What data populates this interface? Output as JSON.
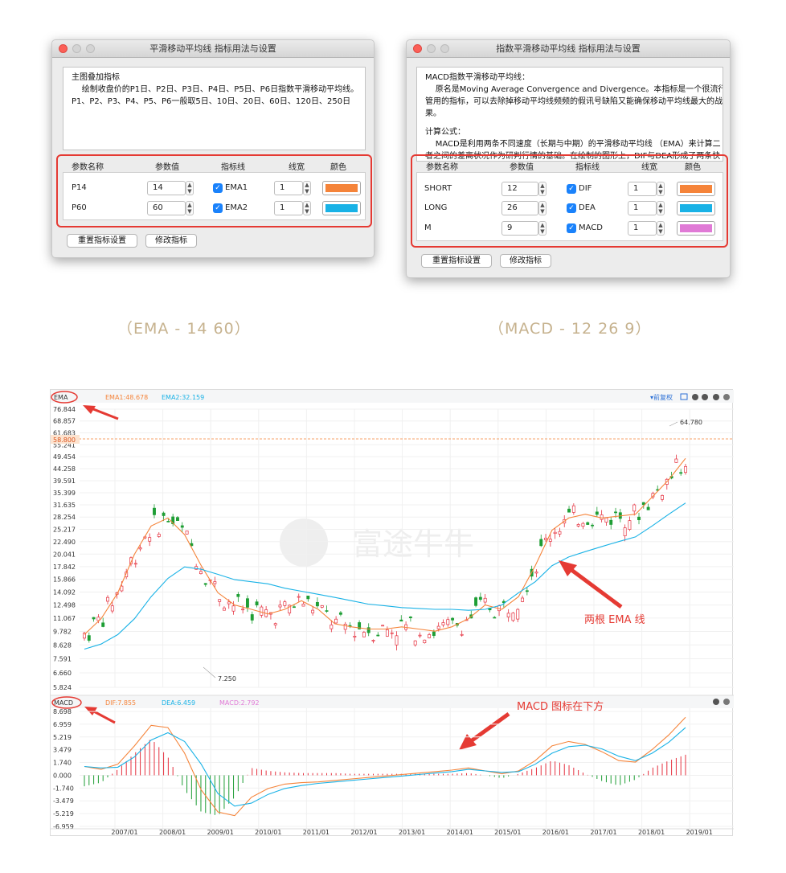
{
  "dialog_ema": {
    "title": "平滑移动平均线 指标用法与设置",
    "desc_lines": [
      "主图叠加指标",
      "    绘制收盘价的P1日、P2日、P3日、P4日、P5日、P6日指数平滑移动平均线。",
      "P1、P2、P3、P4、P5、P6一般取5日、10日、20日、60日、120日、250日"
    ],
    "headers": {
      "name": "参数名称",
      "value": "参数值",
      "line": "指标线",
      "width": "线宽",
      "color": "颜色"
    },
    "rows": [
      {
        "name": "P14",
        "value": "14",
        "line": "EMA1",
        "width": "1",
        "color": "#f5843a"
      },
      {
        "name": "P60",
        "value": "60",
        "line": "EMA2",
        "width": "1",
        "color": "#19b2e6"
      }
    ],
    "reset_label": "重置指标设置",
    "modify_label": "修改指标"
  },
  "dialog_macd": {
    "title": "指数平滑移动平均线 指标用法与设置",
    "desc_lines": [
      "MACD指数平滑移动平均线：",
      "    原名是Moving Average Convergence and Divergence。本指标是一个很流行又",
      "管用的指标，可以去除掉移动平均线频频的假讯号缺陷又能确保移动平均线最大的战",
      "果。",
      "",
      "计算公式：",
      "    MACD是利用两条不同速度（长期与中期）的平滑移动平均线 （EMA）来计算二",
      "者之间的差离状况作为研判行情的基础。在绘制的图形上，DIF与DEA形成了两条快"
    ],
    "headers": {
      "name": "参数名称",
      "value": "参数值",
      "line": "指标线",
      "width": "线宽",
      "color": "颜色"
    },
    "rows": [
      {
        "name": "SHORT",
        "value": "12",
        "line": "DIF",
        "width": "1",
        "color": "#f5843a"
      },
      {
        "name": "LONG",
        "value": "26",
        "line": "DEA",
        "width": "1",
        "color": "#19b2e6"
      },
      {
        "name": "M",
        "value": "9",
        "line": "MACD",
        "width": "1",
        "color": "#e07ad6"
      }
    ],
    "reset_label": "重置指标设置",
    "modify_label": "修改指标"
  },
  "captions": {
    "ema": "（EMA  - 14 60）",
    "macd": "（MACD  - 12 26 9）"
  },
  "chart_data": [
    {
      "type": "line",
      "indicator_label": "EMA",
      "legend": [
        "EMA1:48.678",
        "EMA2:32.159"
      ],
      "toolbar_label": "前复权",
      "watermark": "富途牛牛",
      "y_ticks": [
        "76.844",
        "68.857",
        "61.683",
        "55.241",
        "49.454",
        "44.258",
        "39.591",
        "35.399",
        "31.635",
        "28.254",
        "25.217",
        "22.490",
        "20.041",
        "17.842",
        "15.866",
        "14.092",
        "12.498",
        "11.067",
        "9.782",
        "8.628",
        "7.591",
        "6.660",
        "5.824"
      ],
      "current_price_tag": "58.800",
      "high_label": "64.780",
      "low_label": "7.250",
      "annotation": "两根 EMA 线",
      "x_ticks": [
        "2007/01",
        "2008/01",
        "2009/01",
        "2010/01",
        "2011/01",
        "2012/01",
        "2013/01",
        "2014/01",
        "2015/01",
        "2016/01",
        "2017/01",
        "2018/01",
        "2019/01"
      ],
      "series": [
        {
          "name": "EMA1",
          "color": "#f5843a",
          "values": [
            9.5,
            11,
            14,
            20,
            26,
            28,
            24,
            18,
            14,
            12.5,
            12,
            11.5,
            12,
            13,
            12,
            10.5,
            10.2,
            10,
            10,
            10.2,
            10,
            9.8,
            10.2,
            11,
            12.5,
            12,
            13.5,
            18,
            25,
            28,
            29,
            28,
            28.5,
            29,
            34,
            40,
            48.7
          ]
        },
        {
          "name": "EMA2",
          "color": "#19b2e6",
          "values": [
            8.3,
            8.7,
            9.5,
            11,
            13.5,
            16,
            17.8,
            17.4,
            16.6,
            15.8,
            15.5,
            15.2,
            14.6,
            14.2,
            13.8,
            13.4,
            13,
            12.6,
            12.4,
            12.2,
            12.1,
            12,
            12,
            11.9,
            12,
            12.5,
            14,
            15.5,
            18,
            19.5,
            20.5,
            21.5,
            22.5,
            23.5,
            26,
            29,
            32.2
          ]
        }
      ]
    },
    {
      "type": "bar",
      "indicator_label": "MACD",
      "legend": [
        "DIF:7.855",
        "DEA:6.459",
        "MACD:2.792"
      ],
      "annotation": "MACD 图标在下方",
      "y_ticks": [
        "8.698",
        "6.959",
        "5.219",
        "3.479",
        "1.740",
        "0.000",
        "-1.740",
        "-3.479",
        "-5.219",
        "-6.959"
      ],
      "series": [
        {
          "name": "DIF",
          "color": "#f5843a",
          "values": [
            1.2,
            0.8,
            1.5,
            4,
            6.8,
            6.5,
            3,
            -2,
            -5,
            -5.5,
            -3,
            -1.8,
            -1.2,
            -1,
            -0.9,
            -0.7,
            -0.5,
            -0.3,
            -0.1,
            0.1,
            0.3,
            0.5,
            0.7,
            1,
            0.6,
            0.2,
            0.6,
            2,
            4,
            4.6,
            4.2,
            3.2,
            2,
            1.8,
            3.5,
            5.5,
            7.9
          ]
        },
        {
          "name": "DEA",
          "color": "#19b2e6",
          "values": [
            1.2,
            1,
            1.1,
            2.5,
            4.8,
            5.8,
            4.6,
            1.5,
            -2.5,
            -4.2,
            -3.8,
            -2.6,
            -1.8,
            -1.4,
            -1.1,
            -0.9,
            -0.7,
            -0.5,
            -0.3,
            -0.1,
            0.1,
            0.3,
            0.5,
            0.8,
            0.6,
            0.4,
            0.5,
            1.5,
            3,
            3.9,
            4.1,
            3.6,
            2.6,
            2,
            3,
            4.5,
            6.5
          ]
        },
        {
          "name": "MACD",
          "color": "#e5313f",
          "values": [
            -1.5,
            -1,
            0.8,
            3,
            5,
            2.5,
            -2,
            -5,
            -5.5,
            -3,
            1,
            0.6,
            0.4,
            0.3,
            0.3,
            0.3,
            0.2,
            0.2,
            0.2,
            0.2,
            0.2,
            0.2,
            0.2,
            0.3,
            0,
            -0.4,
            0.2,
            1,
            2,
            1.4,
            0.2,
            -0.8,
            -1.4,
            -0.6,
            1,
            2,
            2.8
          ]
        }
      ]
    }
  ],
  "colors": {
    "up": "#e5313f",
    "down": "#1e9e35",
    "annotation": "#e53a33"
  }
}
